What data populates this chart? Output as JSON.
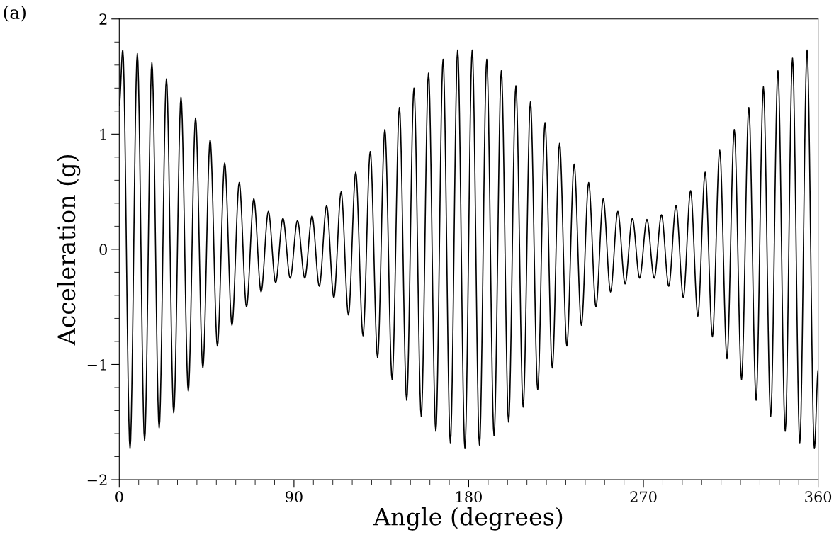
{
  "chart_data": {
    "type": "line",
    "xlabel": "Angle (degrees)",
    "ylabel": "Acceleration (g)",
    "annotations": [
      "(a)"
    ],
    "xlim": [
      0,
      360
    ],
    "xticks": [
      0,
      90,
      180,
      270,
      360
    ],
    "ylim": [
      -2,
      2
    ],
    "yticks": [
      -2,
      -1,
      0,
      1,
      2
    ],
    "grid": false,
    "legend": false,
    "marker": "none",
    "line_style": "solid",
    "series": [
      {
        "color": "#000000",
        "x": [
          0,
          1.8,
          5.55,
          9.3,
          13.05,
          16.8,
          20.55,
          24.3,
          28.05,
          31.8,
          35.55,
          39.3,
          43.05,
          46.8,
          50.55,
          54.3,
          58.05,
          61.8,
          65.55,
          69.3,
          73.05,
          76.8,
          80.55,
          84.3,
          88.05,
          91.8,
          95.55,
          99.3,
          103.05,
          106.8,
          110.55,
          114.3,
          118.05,
          121.8,
          125.55,
          129.3,
          133.05,
          136.8,
          140.55,
          144.3,
          148.05,
          151.8,
          155.55,
          159.3,
          163.05,
          166.8,
          170.55,
          174.3,
          178.05,
          181.8,
          185.55,
          189.3,
          193.05,
          196.8,
          200.55,
          204.3,
          208.05,
          211.8,
          215.55,
          219.3,
          223.05,
          226.8,
          230.55,
          234.3,
          238.05,
          241.8,
          245.55,
          249.3,
          253.05,
          256.8,
          260.55,
          264.3,
          268.05,
          271.8,
          275.55,
          279.3,
          283.05,
          286.8,
          290.55,
          294.3,
          298.05,
          301.8,
          305.55,
          309.3,
          313.05,
          316.8,
          320.55,
          324.3,
          328.05,
          331.8,
          335.55,
          339.3,
          343.05,
          346.8,
          350.55,
          354.3,
          358.05,
          360
        ],
        "values": [
          1.25,
          1.73,
          -1.73,
          1.7,
          -1.66,
          1.62,
          -1.55,
          1.48,
          -1.42,
          1.32,
          -1.23,
          1.14,
          -1.03,
          0.95,
          -0.84,
          0.75,
          -0.66,
          0.58,
          -0.5,
          0.44,
          -0.37,
          0.33,
          -0.29,
          0.27,
          -0.25,
          0.25,
          -0.25,
          0.29,
          -0.32,
          0.38,
          -0.42,
          0.5,
          -0.57,
          0.67,
          -0.75,
          0.85,
          -0.94,
          1.04,
          -1.13,
          1.23,
          -1.31,
          1.4,
          -1.45,
          1.53,
          -1.58,
          1.65,
          -1.68,
          1.73,
          -1.73,
          1.73,
          -1.7,
          1.65,
          -1.62,
          1.55,
          -1.5,
          1.42,
          -1.37,
          1.28,
          -1.22,
          1.1,
          -1.03,
          0.92,
          -0.84,
          0.74,
          -0.66,
          0.58,
          -0.5,
          0.44,
          -0.37,
          0.33,
          -0.3,
          0.27,
          -0.25,
          0.26,
          -0.25,
          0.3,
          -0.32,
          0.38,
          -0.42,
          0.51,
          -0.58,
          0.67,
          -0.76,
          0.86,
          -0.95,
          1.04,
          -1.13,
          1.23,
          -1.31,
          1.41,
          -1.45,
          1.55,
          -1.58,
          1.66,
          -1.68,
          1.73,
          -1.73,
          -1.05
        ]
      }
    ]
  }
}
